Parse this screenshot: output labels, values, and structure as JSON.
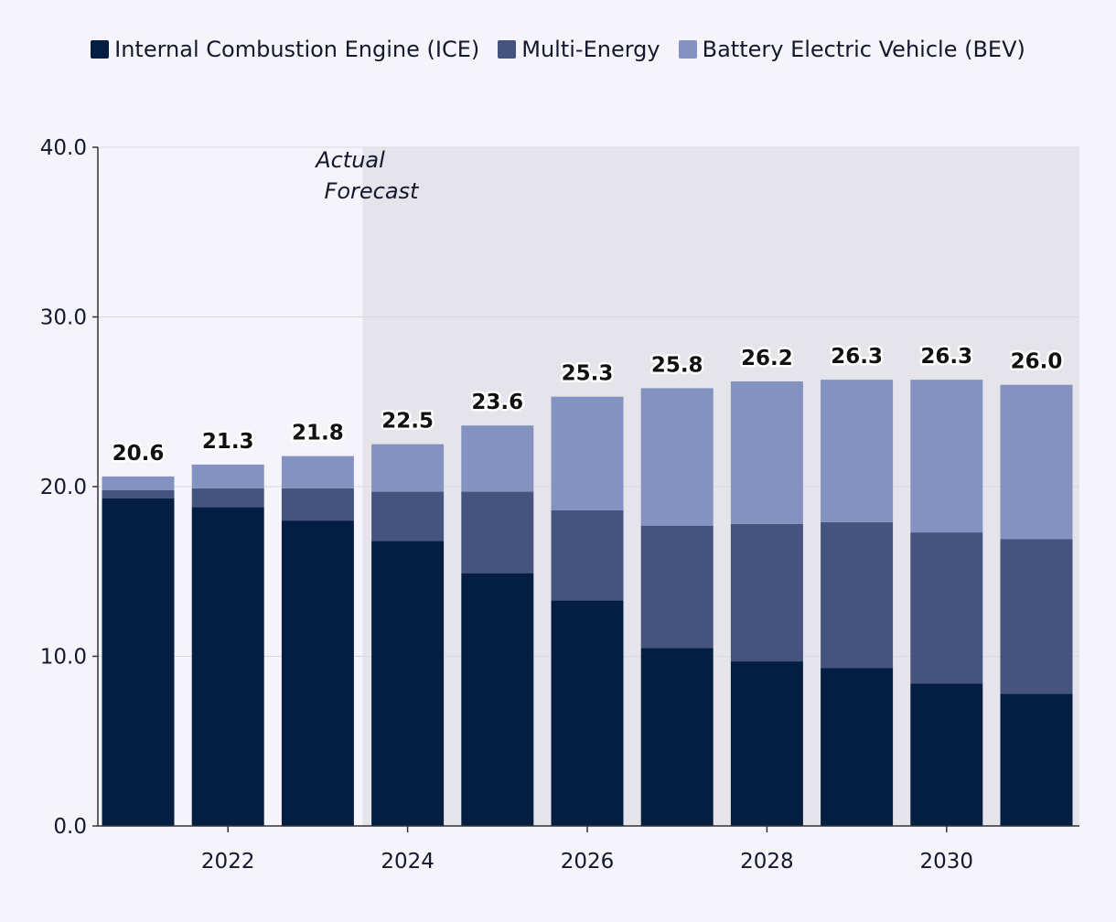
{
  "chart_data": {
    "type": "bar",
    "stacked": true,
    "x": [
      2021,
      2022,
      2023,
      2024,
      2025,
      2026,
      2027,
      2028,
      2029,
      2030,
      2031
    ],
    "x_tick_labels": [
      "2022",
      "2024",
      "2026",
      "2028",
      "2030"
    ],
    "x_tick_values": [
      2022,
      2024,
      2026,
      2028,
      2030
    ],
    "y_tick_labels": [
      "0.0",
      "10.0",
      "20.0",
      "30.0",
      "40.0"
    ],
    "y_tick_values": [
      0,
      10,
      20,
      30,
      40
    ],
    "ylim": [
      0,
      40
    ],
    "grid": true,
    "legend_position": "top-center",
    "series": [
      {
        "name": "Internal Combustion Engine (ICE)",
        "color": "#041e42",
        "values": [
          19.3,
          18.8,
          18.0,
          16.8,
          14.9,
          13.3,
          10.5,
          9.7,
          9.3,
          8.4,
          7.8
        ]
      },
      {
        "name": "Multi-Energy",
        "color": "#44547e",
        "values": [
          0.5,
          1.1,
          1.9,
          2.9,
          4.8,
          5.3,
          7.2,
          8.1,
          8.6,
          8.9,
          9.1
        ]
      },
      {
        "name": "Battery Electric Vehicle (BEV)",
        "color": "#8392c0",
        "values": [
          0.8,
          1.4,
          1.9,
          2.8,
          3.9,
          6.7,
          8.1,
          8.4,
          8.4,
          9.0,
          9.1
        ]
      }
    ],
    "totals": [
      "20.6",
      "21.3",
      "21.8",
      "22.5",
      "23.6",
      "25.3",
      "25.8",
      "26.2",
      "26.3",
      "26.3",
      "26.0"
    ],
    "forecast_start": 2023.5,
    "forecast_region_color": "#e5e4ea",
    "annotations": {
      "actual": "Actual",
      "forecast": "Forecast"
    }
  }
}
